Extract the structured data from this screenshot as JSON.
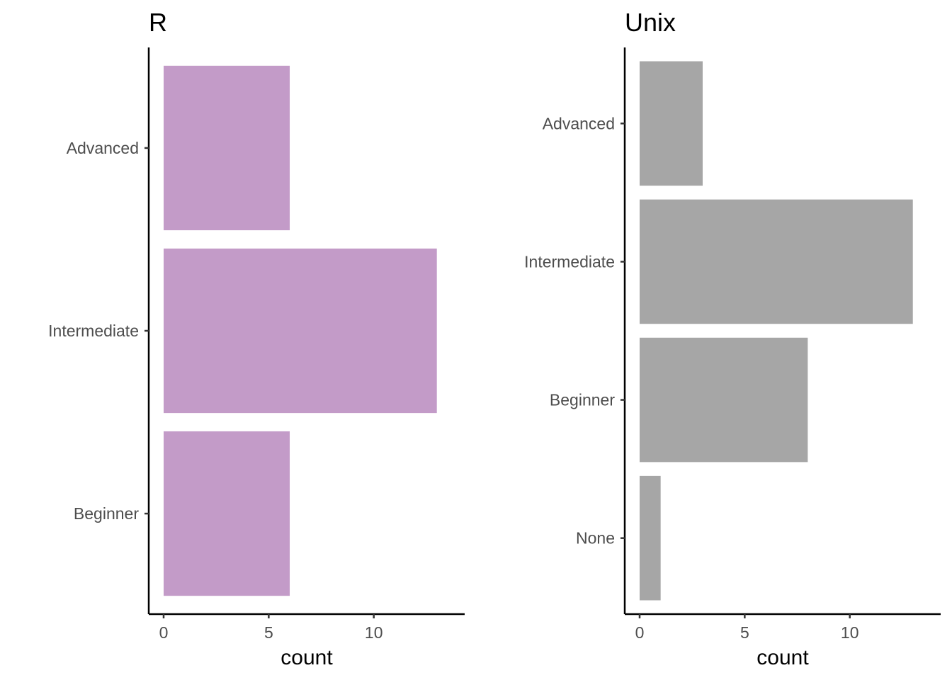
{
  "chart_data": [
    {
      "type": "bar",
      "orientation": "horizontal",
      "title": "R",
      "xlabel": "count",
      "ylabel": "",
      "categories": [
        "Advanced",
        "Intermediate",
        "Beginner"
      ],
      "values": [
        6,
        13,
        6
      ],
      "xlim": [
        0,
        13.65
      ],
      "xticks": [
        0,
        5,
        10
      ],
      "xtick_labels": [
        "0",
        "5",
        "10"
      ],
      "bar_color": "#c39bc8",
      "grid": false,
      "legend": "none"
    },
    {
      "type": "bar",
      "orientation": "horizontal",
      "title": "Unix",
      "xlabel": "count",
      "ylabel": "",
      "categories": [
        "Advanced",
        "Intermediate",
        "Beginner",
        "None"
      ],
      "values": [
        3,
        13,
        8,
        1
      ],
      "xlim": [
        0,
        13.65
      ],
      "xticks": [
        0,
        5,
        10
      ],
      "xtick_labels": [
        "0",
        "5",
        "10"
      ],
      "bar_color": "#a6a6a6",
      "grid": false,
      "legend": "none"
    }
  ]
}
